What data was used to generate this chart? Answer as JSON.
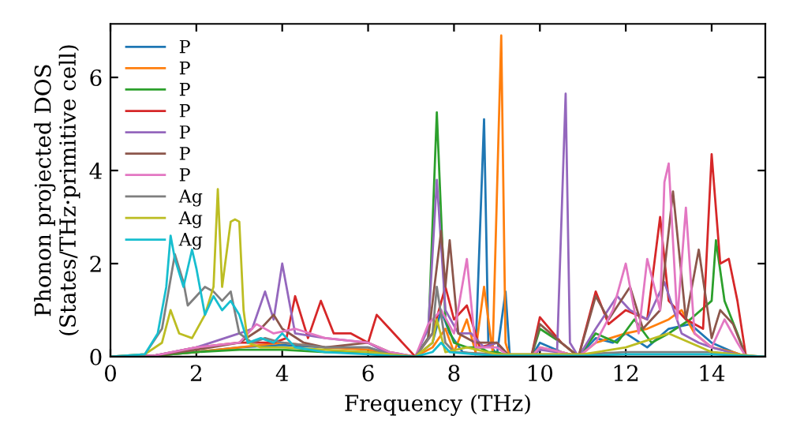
{
  "chart_data": {
    "type": "line",
    "xlabel": "Frequency (THz)",
    "ylabel": "Phonon projected DOS\n(States/THz·primitive cell)",
    "xlim": [
      0,
      15.25
    ],
    "ylim": [
      0,
      7.15
    ],
    "xticks": [
      0,
      2,
      4,
      6,
      8,
      10,
      12,
      14
    ],
    "yticks": [
      0,
      2,
      4,
      6
    ],
    "legend": "top left",
    "line_style": "solid",
    "series": [
      {
        "name": "P",
        "color": "#1f77b4",
        "x": [
          0,
          1,
          2,
          3,
          4,
          5,
          6,
          6.5,
          7.1,
          7.5,
          7.7,
          7.9,
          8.2,
          8.5,
          8.7,
          8.8,
          9.0,
          9.2,
          9.3,
          9.8,
          10,
          10.5,
          10.9,
          11.3,
          11.7,
          12,
          12.5,
          13,
          13.5,
          14,
          14.5,
          14.8,
          15.2
        ],
        "values": [
          0,
          0.02,
          0.1,
          0.2,
          0.25,
          0.2,
          0.2,
          0.05,
          0,
          0.3,
          1.0,
          0.5,
          0.1,
          0.05,
          5.1,
          0.3,
          0.05,
          1.4,
          0,
          0,
          0.3,
          0.1,
          0,
          0.4,
          0.3,
          0.5,
          0.2,
          0.6,
          0.7,
          0.3,
          0.1,
          0,
          0
        ]
      },
      {
        "name": "P",
        "color": "#ff7f0e",
        "x": [
          0,
          1,
          2,
          3,
          4,
          5,
          6,
          6.5,
          7.1,
          7.5,
          7.8,
          8.0,
          8.3,
          8.5,
          8.7,
          8.9,
          9.1,
          9.2,
          9.3,
          9.8,
          10,
          10.5,
          10.9,
          11.3,
          12,
          12.5,
          13,
          13.3,
          13.6,
          14,
          14.5,
          14.8,
          15.2
        ],
        "values": [
          0,
          0.02,
          0.1,
          0.2,
          0.3,
          0.2,
          0.15,
          0.05,
          0,
          0.2,
          0.6,
          0.1,
          0.8,
          0.1,
          1.5,
          0.1,
          6.9,
          0.3,
          0,
          0,
          0.2,
          0.1,
          0,
          0.3,
          0.5,
          0.6,
          0.8,
          1.0,
          0.5,
          0.2,
          0.1,
          0,
          0
        ]
      },
      {
        "name": "P",
        "color": "#2ca02c",
        "x": [
          0,
          1,
          2,
          3,
          4,
          5,
          6,
          6.5,
          7.1,
          7.4,
          7.6,
          7.8,
          8.0,
          8.3,
          8.6,
          8.8,
          9.0,
          9.3,
          9.8,
          10,
          10.5,
          10.9,
          11.3,
          11.8,
          12.2,
          12.6,
          13,
          13.5,
          14.0,
          14.1,
          14.3,
          14.6,
          14.8,
          15.2
        ],
        "values": [
          0,
          0.02,
          0.1,
          0.15,
          0.15,
          0.1,
          0.1,
          0.05,
          0,
          0.4,
          5.25,
          0.8,
          0.3,
          0.2,
          0.2,
          0.1,
          0.1,
          0,
          0,
          0.6,
          0.3,
          0,
          0.5,
          0.3,
          0.8,
          0.3,
          0.5,
          0.8,
          1.2,
          2.5,
          1.2,
          0.5,
          0,
          0
        ]
      },
      {
        "name": "P",
        "color": "#d62728",
        "x": [
          0,
          1,
          2,
          3,
          3.8,
          4.1,
          4.3,
          4.6,
          4.9,
          5.2,
          5.6,
          6.0,
          6.2,
          6.5,
          7.1,
          7.5,
          7.8,
          8.0,
          8.3,
          8.6,
          9.0,
          9.3,
          9.8,
          10,
          10.5,
          10.9,
          11.3,
          11.6,
          12,
          12.5,
          12.8,
          13.0,
          13.4,
          13.8,
          14.0,
          14.2,
          14.4,
          14.6,
          14.8,
          15.2
        ],
        "values": [
          0,
          0.02,
          0.2,
          0.3,
          0.3,
          0.4,
          1.3,
          0.4,
          1.2,
          0.5,
          0.5,
          0.3,
          0.9,
          0.6,
          0,
          0.5,
          1.5,
          0.8,
          1.1,
          0.2,
          0.3,
          0,
          0,
          0.85,
          0.3,
          0,
          1.4,
          0.7,
          1.0,
          0.8,
          3.0,
          1.2,
          0.8,
          0.6,
          4.35,
          2.0,
          2.1,
          1.2,
          0,
          0
        ]
      },
      {
        "name": "P",
        "color": "#9467bd",
        "x": [
          0,
          1,
          2,
          3,
          3.3,
          3.6,
          3.8,
          4.0,
          4.3,
          5,
          6,
          6.5,
          7.1,
          7.4,
          7.6,
          7.8,
          8.1,
          8.4,
          8.7,
          9.0,
          9.3,
          9.8,
          10,
          10.4,
          10.6,
          10.7,
          10.9,
          11.3,
          11.8,
          12.1,
          12.5,
          12.9,
          13.3,
          13.7,
          14,
          14.4,
          14.8,
          15.2
        ],
        "values": [
          0,
          0.02,
          0.2,
          0.5,
          0.6,
          1.4,
          0.8,
          2.0,
          0.5,
          0.4,
          0.3,
          0.05,
          0,
          0.6,
          3.8,
          1.0,
          0.5,
          0.5,
          0.2,
          0.3,
          0,
          0,
          0.15,
          0.1,
          5.65,
          0.3,
          0,
          0.6,
          1.3,
          1.0,
          0.8,
          1.6,
          0.5,
          0.3,
          0.2,
          0.1,
          0,
          0
        ]
      },
      {
        "name": "P",
        "color": "#8c564b",
        "x": [
          0,
          1,
          2,
          3,
          3.5,
          3.8,
          4.0,
          4.5,
          5,
          6,
          6.5,
          7.1,
          7.4,
          7.7,
          7.8,
          7.9,
          8.1,
          8.5,
          9.0,
          9.3,
          9.8,
          10,
          10.5,
          10.9,
          11.3,
          11.6,
          12.1,
          12.4,
          12.8,
          13.1,
          13.4,
          13.7,
          14.0,
          14.2,
          14.5,
          14.8,
          15.2
        ],
        "values": [
          0,
          0.02,
          0.15,
          0.3,
          0.6,
          0.9,
          0.6,
          0.3,
          0.2,
          0.3,
          0.1,
          0,
          0.4,
          2.7,
          1.5,
          2.5,
          0.5,
          0.3,
          0.3,
          0,
          0,
          0.7,
          0.3,
          0,
          1.3,
          0.8,
          1.5,
          0.6,
          1.0,
          3.55,
          0.8,
          2.3,
          0.4,
          1.0,
          0.7,
          0,
          0
        ]
      },
      {
        "name": "P",
        "color": "#e377c2",
        "x": [
          0,
          1,
          2,
          3,
          3.4,
          3.8,
          4.3,
          5,
          6,
          6.5,
          7.1,
          7.4,
          7.7,
          8.0,
          8.3,
          8.5,
          9.0,
          9.3,
          9.8,
          10,
          10.5,
          10.9,
          11.3,
          11.7,
          12.0,
          12.3,
          12.5,
          12.8,
          12.9,
          13.0,
          13.2,
          13.4,
          13.6,
          14,
          14.3,
          14.6,
          14.8,
          15.2
        ],
        "values": [
          0,
          0.02,
          0.2,
          0.3,
          0.7,
          0.5,
          0.6,
          0.4,
          0.3,
          0.1,
          0,
          0.7,
          1.0,
          0.5,
          2.1,
          0.2,
          0.2,
          0,
          0,
          0.2,
          0.1,
          0,
          0.3,
          1.0,
          2.0,
          0.5,
          2.1,
          1.0,
          3.75,
          4.15,
          0.8,
          3.2,
          0.5,
          0.2,
          0.8,
          0.3,
          0,
          0
        ]
      },
      {
        "name": "Ag",
        "color": "#7f7f7f",
        "x": [
          0,
          0.8,
          1.2,
          1.5,
          1.7,
          1.8,
          2.0,
          2.2,
          2.4,
          2.6,
          2.8,
          3.0,
          3.3,
          3.6,
          4,
          5,
          6,
          6.5,
          7.1,
          7.5,
          7.6,
          7.8,
          8,
          9,
          10,
          11,
          12,
          13,
          14,
          15.2
        ],
        "values": [
          0,
          0.05,
          0.6,
          2.2,
          1.6,
          1.1,
          1.3,
          1.5,
          1.4,
          1.2,
          1.4,
          0.5,
          0.3,
          0.4,
          0.3,
          0.2,
          0.2,
          0.05,
          0,
          0.5,
          1.5,
          0.3,
          0.1,
          0.05,
          0.05,
          0.05,
          0.1,
          0.1,
          0.1,
          0
        ]
      },
      {
        "name": "Ag",
        "color": "#bcbd22",
        "x": [
          0,
          0.8,
          1.2,
          1.4,
          1.6,
          1.9,
          2.2,
          2.4,
          2.5,
          2.6,
          2.8,
          2.9,
          3.0,
          3.1,
          3.2,
          3.5,
          4,
          5,
          6,
          6.5,
          7.1,
          7.5,
          7.6,
          7.8,
          8.3,
          9,
          10,
          11,
          12,
          13,
          14,
          15.2
        ],
        "values": [
          0,
          0.05,
          0.3,
          1.0,
          0.5,
          0.4,
          0.9,
          1.5,
          3.6,
          1.5,
          2.9,
          2.95,
          2.9,
          1.0,
          0.3,
          0.2,
          0.2,
          0.15,
          0.1,
          0.05,
          0,
          0.3,
          0.8,
          0.1,
          0.2,
          0.05,
          0.05,
          0.05,
          0.2,
          0.5,
          0.1,
          0
        ]
      },
      {
        "name": "Ag",
        "color": "#17becf",
        "x": [
          0,
          0.8,
          1.1,
          1.3,
          1.4,
          1.5,
          1.7,
          1.9,
          2.0,
          2.2,
          2.4,
          2.6,
          2.8,
          3.0,
          3.2,
          3.5,
          3.8,
          4.0,
          4.3,
          5,
          6,
          6.5,
          7.1,
          7.5,
          7.7,
          7.9,
          8.5,
          9,
          10,
          11,
          12,
          13,
          14,
          15.2
        ],
        "values": [
          0,
          0.05,
          0.5,
          1.5,
          2.6,
          2.1,
          1.5,
          2.3,
          1.9,
          0.9,
          1.3,
          1.0,
          1.2,
          0.9,
          0.3,
          0.4,
          0.3,
          0.5,
          0.2,
          0.1,
          0.05,
          0.02,
          0,
          0.1,
          0.3,
          0.1,
          0.05,
          0.02,
          0.02,
          0.02,
          0.05,
          0.05,
          0.05,
          0
        ]
      }
    ]
  }
}
